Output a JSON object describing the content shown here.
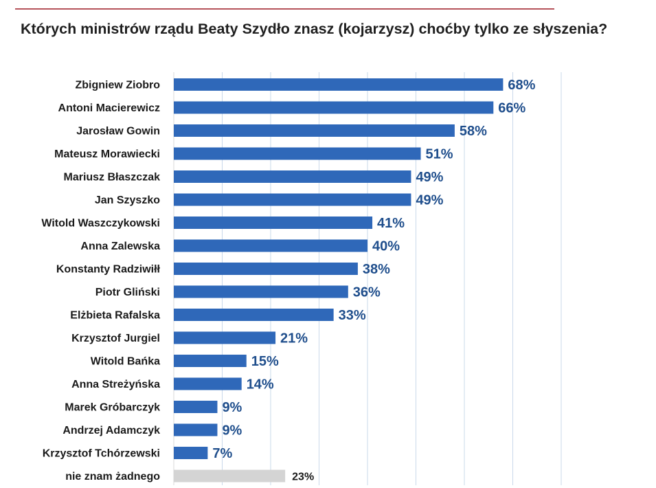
{
  "title": "Których ministrów rządu Beaty Szydło znasz (kojarzysz) choćby tylko ze słyszenia?",
  "colors": {
    "bar": "#2f68b9",
    "bar_none": "#d4d4d4",
    "value_text": "#1f4e8c",
    "value_text_none": "#1a1a1a",
    "grid": "#c9d8ea",
    "rule": "#b5535a"
  },
  "chart_data": {
    "type": "bar",
    "orientation": "horizontal",
    "title": "Których ministrów rządu Beaty Szydło znasz (kojarzysz) choćby tylko ze słyszenia?",
    "xlim": [
      0,
      80
    ],
    "grid": true,
    "value_suffix": "%",
    "categories": [
      "Zbigniew Ziobro",
      "Antoni Macierewicz",
      "Jarosław Gowin",
      "Mateusz Morawiecki",
      "Mariusz Błaszczak",
      "Jan Szyszko",
      "Witold Waszczykowski",
      "Anna Zalewska",
      "Konstanty Radziwiłł",
      "Piotr Gliński",
      "Elżbieta Rafalska",
      "Krzysztof Jurgiel",
      "Witold Bańka",
      "Anna Streżyńska",
      "Marek Gróbarczyk",
      "Andrzej Adamczyk",
      "Krzysztof Tchórzewski",
      "nie znam żadnego"
    ],
    "values": [
      68,
      66,
      58,
      51,
      49,
      49,
      41,
      40,
      38,
      36,
      33,
      21,
      15,
      14,
      9,
      9,
      7,
      23
    ],
    "labels": [
      "68%",
      "66%",
      "58%",
      "51%",
      "49%",
      "49%",
      "41%",
      "40%",
      "38%",
      "36%",
      "33%",
      "21%",
      "15%",
      "14%",
      "9%",
      "9%",
      "7%",
      "23%"
    ]
  }
}
